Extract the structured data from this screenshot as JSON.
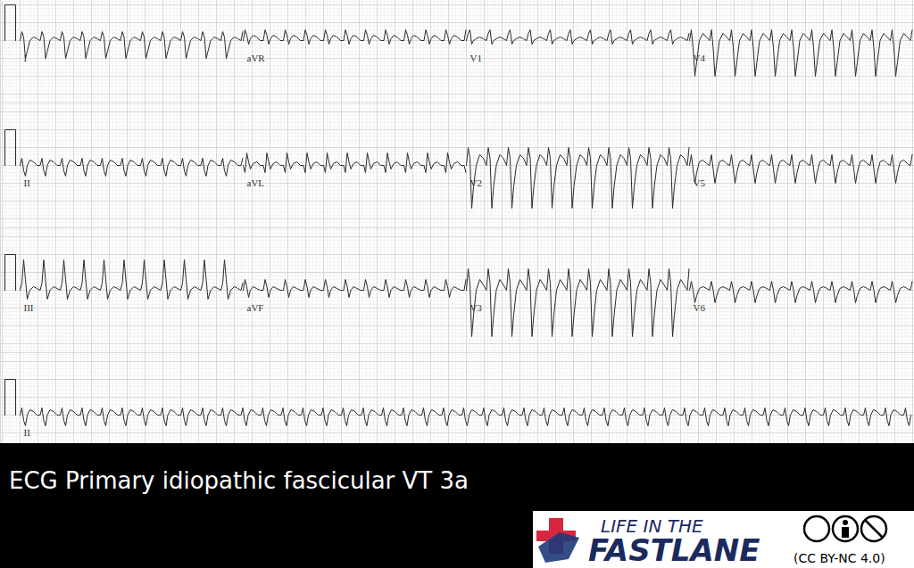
{
  "chart_data": {
    "type": "ecg",
    "title": "ECG Primary idiopathic fascicular VT 3a",
    "xlim": [
      -0.22,
      10.02
    ],
    "ylim": [
      -1.75,
      1.75
    ],
    "grid": true,
    "tick_labels": false,
    "grid_major": {
      "s": 0.2,
      "mV": 0.5
    },
    "grid_minor": {
      "s": 0.04,
      "mV": 0.1
    },
    "color": "#2a2a2a",
    "calibration": {
      "t": [
        -0.17,
        -0.05
      ],
      "mV": 1
    },
    "rr": 0.225,
    "beat_t": [
      0,
      0.02,
      0.04,
      0.06,
      0.08,
      0.11,
      0.15,
      0.19,
      0.225
    ],
    "rows": [
      [
        {
          "lead": "I",
          "t": [
            0,
            2.5
          ],
          "beat": [
            0,
            0.25,
            0.1,
            -0.5,
            -0.3,
            0,
            0.1,
            0.05,
            0
          ]
        },
        {
          "lead": "aVR",
          "t": [
            2.5,
            5.0
          ],
          "beat": [
            0,
            0.3,
            0.15,
            -0.1,
            0.05,
            0.15,
            0.1,
            0,
            0
          ]
        },
        {
          "lead": "V1",
          "t": [
            5.0,
            7.5
          ],
          "beat": [
            0,
            0.2,
            0.3,
            -0.1,
            0,
            0.05,
            0.1,
            0.05,
            0
          ]
        },
        {
          "lead": "V4",
          "t": [
            7.5,
            10.0
          ],
          "beat": [
            0,
            0.3,
            -0.2,
            -1.0,
            -0.6,
            0,
            0.2,
            0.1,
            0
          ]
        }
      ],
      [
        {
          "lead": "II",
          "t": [
            0,
            2.5
          ],
          "beat": [
            0,
            0.2,
            -0.15,
            -0.3,
            0,
            0.15,
            0.1,
            0,
            0
          ]
        },
        {
          "lead": "aVL",
          "t": [
            2.5,
            5.0
          ],
          "beat": [
            0,
            -0.2,
            0.35,
            0.1,
            -0.1,
            0.05,
            0.1,
            0,
            0
          ]
        },
        {
          "lead": "V2",
          "t": [
            5.0,
            7.5
          ],
          "beat": [
            0,
            0.5,
            0.2,
            -1.2,
            -0.6,
            0,
            0.3,
            0.2,
            0
          ]
        },
        {
          "lead": "V5",
          "t": [
            7.5,
            10.0
          ],
          "beat": [
            0,
            0.3,
            -0.1,
            -0.5,
            -0.2,
            0.1,
            0.15,
            0.05,
            0
          ]
        }
      ],
      [
        {
          "lead": "III",
          "t": [
            0,
            2.5
          ],
          "beat": [
            0,
            0.2,
            0.85,
            0.3,
            -0.25,
            0,
            0.1,
            0.05,
            0
          ]
        },
        {
          "lead": "aVF",
          "t": [
            2.5,
            5.0
          ],
          "beat": [
            0,
            0.3,
            0.1,
            -0.2,
            0,
            0.1,
            0.05,
            0,
            0
          ]
        },
        {
          "lead": "V3",
          "t": [
            5.0,
            7.5
          ],
          "beat": [
            0,
            0.6,
            0.2,
            -1.3,
            -0.7,
            0,
            0.3,
            0.15,
            0
          ]
        },
        {
          "lead": "V6",
          "t": [
            7.5,
            10.0
          ],
          "beat": [
            0,
            0.25,
            0,
            -0.35,
            -0.15,
            0.05,
            0.1,
            0.05,
            0
          ]
        }
      ],
      [
        {
          "lead": "II",
          "t": [
            0,
            10.0
          ],
          "beat": [
            0,
            0.2,
            -0.15,
            -0.3,
            0,
            0.15,
            0.1,
            0,
            0
          ]
        }
      ]
    ]
  },
  "credit": {
    "brand_top": "LIFE IN THE",
    "brand": "FASTLANE",
    "license": "(CC BY-NC 4.0)"
  }
}
